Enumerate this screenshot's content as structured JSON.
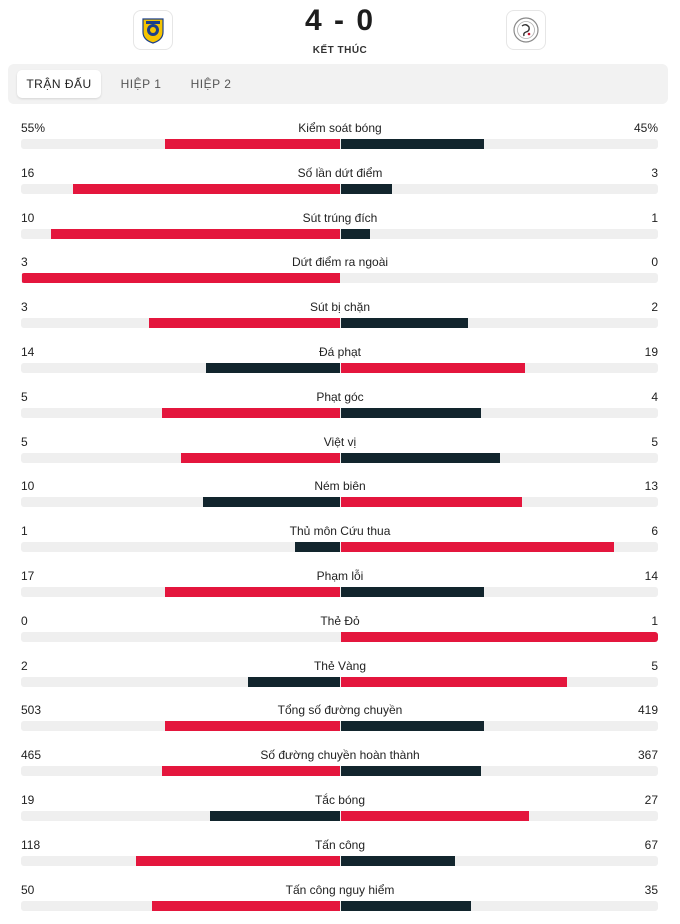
{
  "match": {
    "score": "4 - 0",
    "status": "KẾT THÚC",
    "home_crest_icon": "al-nassr-crest-icon",
    "away_crest_icon": "al-shabab-crest-icon"
  },
  "tabs": [
    {
      "label": "TRẬN ĐẤU",
      "active": true
    },
    {
      "label": "HIỆP 1",
      "active": false
    },
    {
      "label": "HIỆP 2",
      "active": false
    }
  ],
  "colors": {
    "leading": "#e4163d",
    "trailing": "#12252d",
    "track": "#efefef"
  },
  "stats": [
    {
      "label": "Kiểm soát bóng",
      "home": "55%",
      "away": "45%",
      "home_fill": 0.55,
      "away_fill": 0.45
    },
    {
      "label": "Số lần dứt điểm",
      "home": "16",
      "away": "3",
      "home_fill": 0.84,
      "away_fill": 0.16
    },
    {
      "label": "Sút trúng đích",
      "home": "10",
      "away": "1",
      "home_fill": 0.91,
      "away_fill": 0.09
    },
    {
      "label": "Dứt điểm ra ngoài",
      "home": "3",
      "away": "0",
      "home_fill": 1.0,
      "away_fill": 0.0
    },
    {
      "label": "Sút bị chặn",
      "home": "3",
      "away": "2",
      "home_fill": 0.6,
      "away_fill": 0.4
    },
    {
      "label": "Đá phạt",
      "home": "14",
      "away": "19",
      "home_fill": 0.42,
      "away_fill": 0.58
    },
    {
      "label": "Phạt góc",
      "home": "5",
      "away": "4",
      "home_fill": 0.56,
      "away_fill": 0.44
    },
    {
      "label": "Việt vị",
      "home": "5",
      "away": "5",
      "home_fill": 0.5,
      "away_fill": 0.5
    },
    {
      "label": "Ném biên",
      "home": "10",
      "away": "13",
      "home_fill": 0.43,
      "away_fill": 0.57
    },
    {
      "label": "Thủ môn Cứu thua",
      "home": "1",
      "away": "6",
      "home_fill": 0.14,
      "away_fill": 0.86
    },
    {
      "label": "Phạm lỗi",
      "home": "17",
      "away": "14",
      "home_fill": 0.55,
      "away_fill": 0.45
    },
    {
      "label": "Thẻ Đỏ",
      "home": "0",
      "away": "1",
      "home_fill": 0.0,
      "away_fill": 1.0
    },
    {
      "label": "Thẻ Vàng",
      "home": "2",
      "away": "5",
      "home_fill": 0.29,
      "away_fill": 0.71
    },
    {
      "label": "Tổng số đường chuyền",
      "home": "503",
      "away": "419",
      "home_fill": 0.55,
      "away_fill": 0.45
    },
    {
      "label": "Số đường chuyền hoàn thành",
      "home": "465",
      "away": "367",
      "home_fill": 0.56,
      "away_fill": 0.44
    },
    {
      "label": "Tắc bóng",
      "home": "19",
      "away": "27",
      "home_fill": 0.41,
      "away_fill": 0.59
    },
    {
      "label": "Tấn công",
      "home": "118",
      "away": "67",
      "home_fill": 0.64,
      "away_fill": 0.36
    },
    {
      "label": "Tấn công nguy hiểm",
      "home": "50",
      "away": "35",
      "home_fill": 0.59,
      "away_fill": 0.41
    }
  ]
}
